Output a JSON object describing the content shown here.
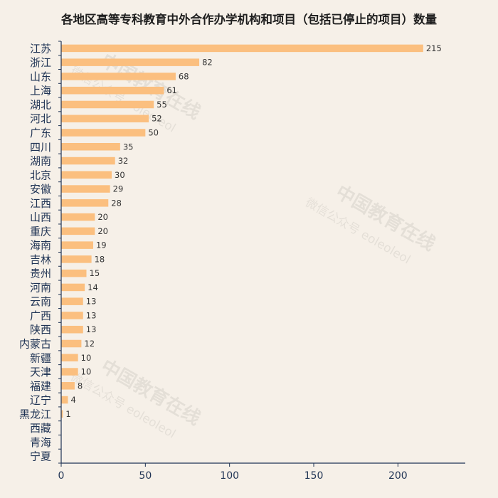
{
  "chart_data": {
    "type": "bar",
    "orientation": "horizontal",
    "title": "各地区高等专科教育中外合作办学机构和项目（包括已停止的项目）数量",
    "categories": [
      "江苏",
      "浙江",
      "山东",
      "上海",
      "湖北",
      "河北",
      "广东",
      "四川",
      "湖南",
      "北京",
      "安徽",
      "江西",
      "山西",
      "重庆",
      "海南",
      "吉林",
      "贵州",
      "河南",
      "云南",
      "广西",
      "陕西",
      "内蒙古",
      "新疆",
      "天津",
      "福建",
      "辽宁",
      "黑龙江",
      "西藏",
      "青海",
      "宁夏"
    ],
    "values": [
      215,
      82,
      68,
      61,
      55,
      52,
      50,
      35,
      32,
      30,
      29,
      28,
      20,
      20,
      19,
      18,
      15,
      14,
      13,
      13,
      13,
      12,
      10,
      10,
      8,
      4,
      1,
      null,
      null,
      null
    ],
    "xlim": [
      0,
      240
    ],
    "xticks": [
      0,
      50,
      100,
      150,
      200
    ],
    "bar_color": "#fbbf7f",
    "grid": false,
    "xlabel": "",
    "ylabel": ""
  },
  "watermark": {
    "main": "中国教育在线",
    "sub": "微信公众号 eoleoleol"
  }
}
